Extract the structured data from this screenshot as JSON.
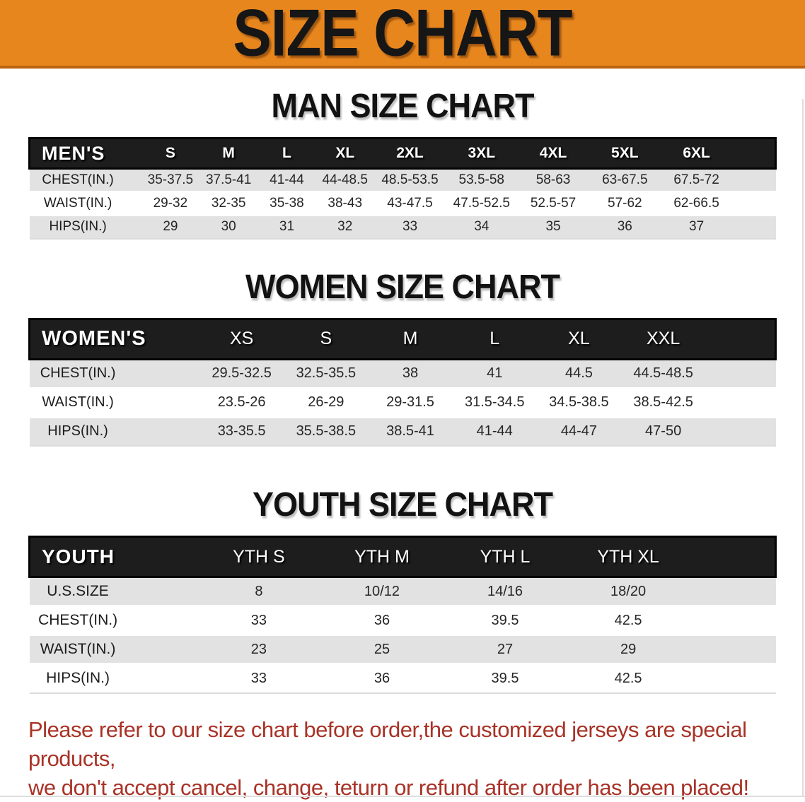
{
  "banner": {
    "title": "SIZE CHART"
  },
  "sections": {
    "men": {
      "heading": "MAN SIZE CHART"
    },
    "women": {
      "heading": "WOMEN SIZE CHART"
    },
    "youth": {
      "heading": "YOUTH SIZE CHART"
    }
  },
  "tables": {
    "men": {
      "label": "MEN'S",
      "sizes": [
        "S",
        "M",
        "L",
        "XL",
        "2XL",
        "3XL",
        "4XL",
        "5XL",
        "6XL"
      ],
      "rows": [
        {
          "label": "CHEST(IN.)",
          "values": [
            "35-37.5",
            "37.5-41",
            "41-44",
            "44-48.5",
            "48.5-53.5",
            "53.5-58",
            "58-63",
            "63-67.5",
            "67.5-72"
          ]
        },
        {
          "label": "WAIST(IN.)",
          "values": [
            "29-32",
            "32-35",
            "35-38",
            "38-43",
            "43-47.5",
            "47.5-52.5",
            "52.5-57",
            "57-62",
            "62-66.5"
          ]
        },
        {
          "label": "HIPS(IN.)",
          "values": [
            "29",
            "30",
            "31",
            "32",
            "33",
            "34",
            "35",
            "36",
            "37"
          ]
        }
      ]
    },
    "women": {
      "label": "WOMEN'S",
      "sizes": [
        "XS",
        "S",
        "M",
        "L",
        "XL",
        "XXL"
      ],
      "rows": [
        {
          "label": "CHEST(IN.)",
          "values": [
            "29.5-32.5",
            "32.5-35.5",
            "38",
            "41",
            "44.5",
            "44.5-48.5"
          ]
        },
        {
          "label": "WAIST(IN.)",
          "values": [
            "23.5-26",
            "26-29",
            "29-31.5",
            "31.5-34.5",
            "34.5-38.5",
            "38.5-42.5"
          ]
        },
        {
          "label": "HIPS(IN.)",
          "values": [
            "33-35.5",
            "35.5-38.5",
            "38.5-41",
            "41-44",
            "44-47",
            "47-50"
          ]
        }
      ]
    },
    "youth": {
      "label": "YOUTH",
      "sizes": [
        "YTH S",
        "YTH M",
        "YTH L",
        "YTH XL"
      ],
      "rows": [
        {
          "label": "U.S.SIZE",
          "values": [
            "8",
            "10/12",
            "14/16",
            "18/20"
          ]
        },
        {
          "label": "CHEST(IN.)",
          "values": [
            "33",
            "36",
            "39.5",
            "42.5"
          ]
        },
        {
          "label": "WAIST(IN.)",
          "values": [
            "23",
            "25",
            "27",
            "29"
          ]
        },
        {
          "label": "HIPS(IN.)",
          "values": [
            "33",
            "36",
            "39.5",
            "42.5"
          ]
        }
      ]
    }
  },
  "disclaimer": {
    "line1": "Please refer to our size chart before order,the customized jerseys are special products,",
    "line2": "we don't accept cancel, change, teturn or refund after order has been placed!"
  },
  "colors": {
    "banner_orange": "#E8861E",
    "banner_edge": "#BC6410",
    "header_bar_black": "#1D1D1D",
    "row_gray": "#E2E2E2",
    "disclaimer_red": "#A93226"
  }
}
